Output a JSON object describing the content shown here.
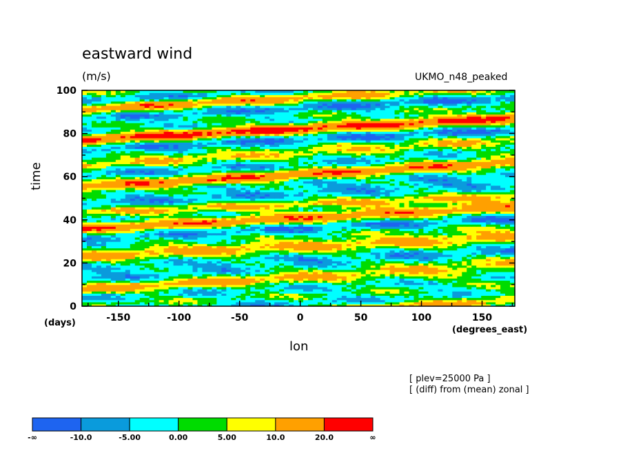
{
  "chart_data": {
    "type": "heatmap",
    "title": "eastward wind",
    "units": "(m/s)",
    "run_label": "UKMO_n48_peaked",
    "xlabel": "lon",
    "x_units": "(degrees_east)",
    "ylabel": "time",
    "y_units": "(days)",
    "xlim": [
      -180,
      177
    ],
    "ylim": [
      0,
      100
    ],
    "x_ticks": [
      -150,
      -100,
      -50,
      0,
      50,
      100,
      150
    ],
    "y_ticks": [
      0,
      20,
      40,
      60,
      80,
      100
    ],
    "notes": [
      "[ plev=25000 Pa ]",
      "[ (diff) from (mean) zonal ]"
    ],
    "colorbar": {
      "levels": [
        "-∞",
        "-10.0",
        "-5.00",
        "0.00",
        "5.00",
        "10.0",
        "20.0",
        "∞"
      ],
      "colors": [
        "#1e64f0",
        "#0a9bdc",
        "#00ffff",
        "#00dc00",
        "#ffff00",
        "#ffa000",
        "#ff0000"
      ]
    },
    "bands": [
      {
        "t0": 0,
        "v0": 4,
        "slope": 0.03
      },
      {
        "t0": 2,
        "v0": -5,
        "slope": 0.02
      },
      {
        "t0": 8,
        "v0": 12,
        "slope": 0.035
      },
      {
        "t0": 14,
        "v0": -7,
        "slope": 0.03
      },
      {
        "t0": 24,
        "v0": 14,
        "slope": 0.025
      },
      {
        "t0": 30,
        "v0": -6,
        "slope": 0.03
      },
      {
        "t0": 36,
        "v0": 16,
        "slope": 0.03
      },
      {
        "t0": 44,
        "v0": 8,
        "slope": 0.02
      },
      {
        "t0": 48,
        "v0": -8,
        "slope": 0.03
      },
      {
        "t0": 55,
        "v0": 17,
        "slope": 0.035
      },
      {
        "t0": 62,
        "v0": -6,
        "slope": 0.03
      },
      {
        "t0": 66,
        "v0": 12,
        "slope": 0.03
      },
      {
        "t0": 72,
        "v0": -9,
        "slope": 0.025
      },
      {
        "t0": 77,
        "v0": 21,
        "slope": 0.03
      },
      {
        "t0": 86,
        "v0": -7,
        "slope": 0.03
      },
      {
        "t0": 91,
        "v0": 14,
        "slope": 0.035
      },
      {
        "t0": 96,
        "v0": -5,
        "slope": 0.02
      }
    ]
  }
}
